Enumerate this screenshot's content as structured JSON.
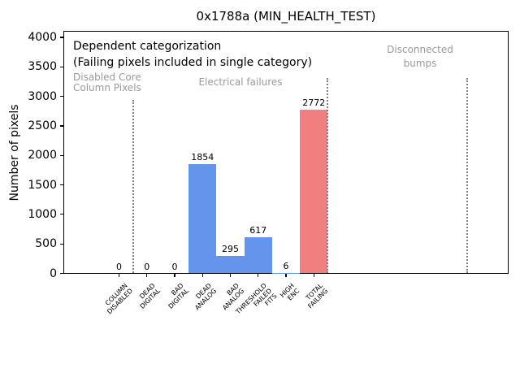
{
  "window": {
    "title": "0x1788a (MIN_HEALTH_TEST)"
  },
  "chart_data": {
    "type": "bar",
    "title": "0x1788a (MIN_HEALTH_TEST)",
    "xlabel": "",
    "ylabel": "Number of pixels",
    "categories": [
      "COLUMN\nDISABLED",
      "DEAD\nDIGITAL",
      "BAD\nDIGITAL",
      "DEAD\nANALOG",
      "BAD\nANALOG",
      "THRESHOLD\nFAILED\nFITS",
      "HIGH\nENC",
      "TOTAL\nFAILING"
    ],
    "values": [
      0,
      0,
      0,
      1854,
      295,
      617,
      6,
      2772
    ],
    "value_labels": [
      "0",
      "0",
      "0",
      "1854",
      "295",
      "617",
      "6",
      "2772"
    ],
    "bar_colors": [
      "#6495ed",
      "#6495ed",
      "#6495ed",
      "#6495ed",
      "#6495ed",
      "#6495ed",
      "#6495ed",
      "#f08080"
    ],
    "ylim": [
      0,
      4117
    ],
    "yticks": [
      0,
      500,
      1000,
      1500,
      2000,
      2500,
      3000,
      3500,
      4000
    ],
    "xlim": [
      -2,
      14
    ],
    "grid": false,
    "legend": null,
    "separator_color": "#7f7f7f",
    "separators": [
      {
        "x": 0.5,
        "top_value": 2940
      },
      {
        "x": 7.5,
        "top_value": 3315
      },
      {
        "x": 12.5,
        "top_value": 3315
      }
    ],
    "annotations": {
      "dependent": {
        "text": "Dependent categorization",
        "color": "#000000"
      },
      "failing_note": {
        "text": "(Failing pixels included in single category)",
        "color": "#000000"
      },
      "disabled_core": {
        "text": "Disabled Core\nColumn Pixels",
        "color": "#9a9a9a"
      },
      "electrical": {
        "text": "Electrical failures",
        "color": "#9a9a9a"
      },
      "disconnected": {
        "text": "Disconnected\nbumps",
        "color": "#9a9a9a"
      }
    },
    "accent_colors": {
      "bar_blue": "#6495ed",
      "bar_red": "#f08080",
      "section_text_gray": "#9a9a9a"
    }
  }
}
